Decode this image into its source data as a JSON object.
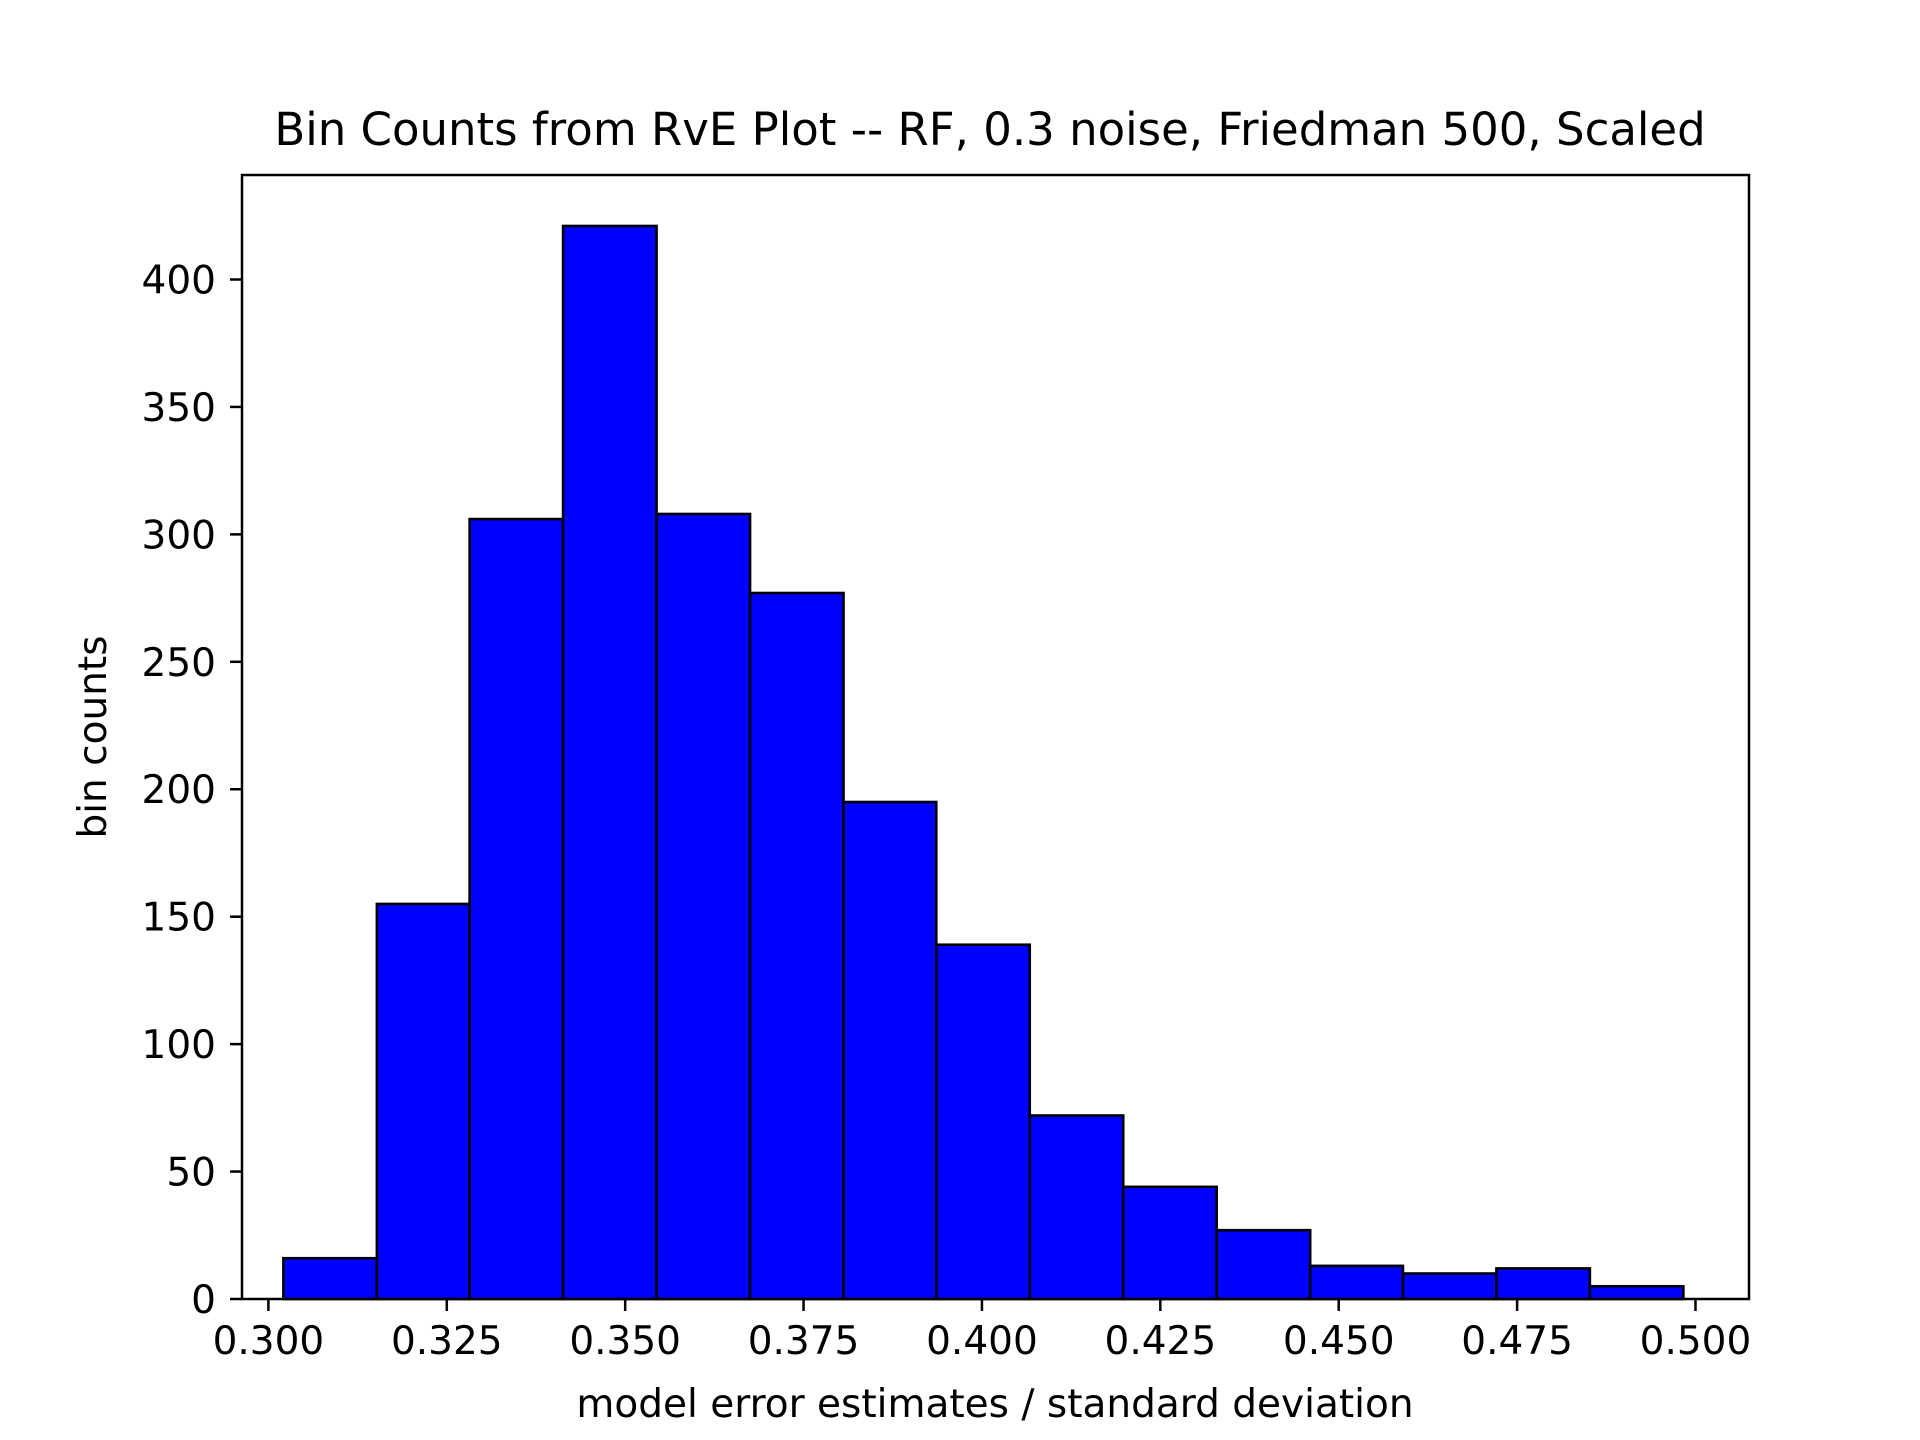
{
  "chart_data": {
    "type": "bar",
    "title": "Bin Counts from RvE Plot -- RF, 0.3 noise, Friedman 500, Scaled",
    "xlabel": "model error estimates / standard deviation",
    "ylabel": "bin counts",
    "xlim": [
      0.2963,
      0.5075
    ],
    "ylim": [
      0,
      441
    ],
    "x_ticks": [
      0.3,
      0.325,
      0.35,
      0.375,
      0.4,
      0.425,
      0.45,
      0.475,
      0.5
    ],
    "x_tick_labels": [
      "0.300",
      "0.325",
      "0.350",
      "0.375",
      "0.400",
      "0.425",
      "0.450",
      "0.475",
      "0.500"
    ],
    "y_ticks": [
      0,
      50,
      100,
      150,
      200,
      250,
      300,
      350,
      400
    ],
    "y_tick_labels": [
      "0",
      "50",
      "100",
      "150",
      "200",
      "250",
      "300",
      "350",
      "400"
    ],
    "bin_edges": [
      0.3021,
      0.3152,
      0.3282,
      0.3413,
      0.3544,
      0.3675,
      0.3806,
      0.3936,
      0.4067,
      0.4198,
      0.4329,
      0.446,
      0.459,
      0.4721,
      0.4852,
      0.4983
    ],
    "values": [
      16,
      155,
      306,
      421,
      308,
      277,
      195,
      139,
      72,
      44,
      27,
      13,
      10,
      12,
      5
    ],
    "bar_color": "#0000ff",
    "edge_color": "#000000",
    "grid": false,
    "legend": "none"
  }
}
